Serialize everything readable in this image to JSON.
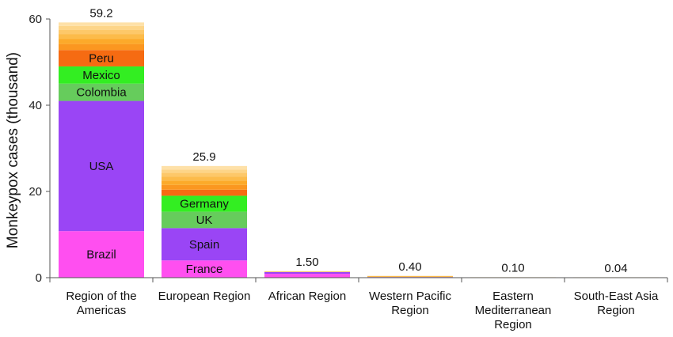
{
  "chart_data": {
    "type": "bar",
    "stacked": true,
    "ylabel": "Monkeypox cases (thousand)",
    "ylim": [
      0,
      60
    ],
    "yticks": [
      "0",
      "20",
      "40",
      "60"
    ],
    "grid": false,
    "categories": [
      [
        "Region of the",
        "Americas"
      ],
      [
        "European Region"
      ],
      [
        "African Region"
      ],
      [
        "Western Pacific",
        "Region"
      ],
      [
        "Eastern",
        "Mediterranean",
        "Region"
      ],
      [
        "South-East Asia",
        "Region"
      ]
    ],
    "totals": [
      "59.2",
      "25.9",
      "1.50",
      "0.40",
      "0.10",
      "0.04"
    ],
    "total_values": [
      59.2,
      25.9,
      1.5,
      0.4,
      0.1,
      0.04
    ],
    "stacks": [
      [
        {
          "name": "Brazil",
          "value": 10.8,
          "color": "#ff4ff0"
        },
        {
          "name": "USA",
          "value": 30.2,
          "color": "#9a45f5"
        },
        {
          "name": "Colombia",
          "value": 4.0,
          "color": "#66cc5c"
        },
        {
          "name": "Mexico",
          "value": 4.0,
          "color": "#33ee22"
        },
        {
          "name": "Peru",
          "value": 3.8,
          "color": "#f66b12"
        },
        {
          "name": "",
          "value": 1.4,
          "color": "#fb9720"
        },
        {
          "name": "",
          "value": 1.2,
          "color": "#fcaa2a"
        },
        {
          "name": "",
          "value": 1.1,
          "color": "#fcbb4a"
        },
        {
          "name": "",
          "value": 1.0,
          "color": "#fdc869"
        },
        {
          "name": "",
          "value": 0.9,
          "color": "#fdd588"
        },
        {
          "name": "",
          "value": 0.8,
          "color": "#fee1a8"
        }
      ],
      [
        {
          "name": "France",
          "value": 4.0,
          "color": "#ff4ff0"
        },
        {
          "name": "Spain",
          "value": 7.5,
          "color": "#9a45f5"
        },
        {
          "name": "UK",
          "value": 3.8,
          "color": "#66cc5c"
        },
        {
          "name": "Germany",
          "value": 3.7,
          "color": "#33ee22"
        },
        {
          "name": "",
          "value": 1.4,
          "color": "#f66b12"
        },
        {
          "name": "",
          "value": 1.1,
          "color": "#fb9720"
        },
        {
          "name": "",
          "value": 1.0,
          "color": "#fcaa2a"
        },
        {
          "name": "",
          "value": 0.9,
          "color": "#fcbb4a"
        },
        {
          "name": "",
          "value": 0.9,
          "color": "#fdc869"
        },
        {
          "name": "",
          "value": 0.8,
          "color": "#fdd588"
        },
        {
          "name": "",
          "value": 0.8,
          "color": "#fee1a8"
        }
      ],
      [
        {
          "name": "",
          "value": 0.9,
          "color": "#ff4ff0"
        },
        {
          "name": "",
          "value": 0.4,
          "color": "#9a45f5"
        },
        {
          "name": "",
          "value": 0.2,
          "color": "#fdc869"
        }
      ],
      [
        {
          "name": "",
          "value": 0.15,
          "color": "#9a45f5"
        },
        {
          "name": "",
          "value": 0.25,
          "color": "#fcbb4a"
        }
      ],
      [
        {
          "name": "",
          "value": 0.1,
          "color": "#fdd588"
        }
      ],
      [
        {
          "name": "",
          "value": 0.04,
          "color": "#fee1a8"
        }
      ]
    ]
  }
}
